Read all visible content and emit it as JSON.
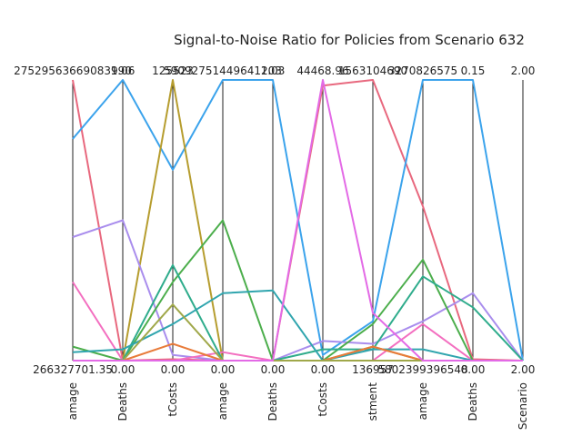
{
  "chart_data": {
    "type": "line",
    "subtype": "parallel-coordinates",
    "title": "Signal-to-Noise Ratio for Policies from Scenario 632",
    "axes": [
      {
        "label": "Damage",
        "label_visible": "amage",
        "top": "27529563669083990",
        "bottom": "266327701.35"
      },
      {
        "label": "Deaths",
        "label_visible": "Deaths",
        "top": "1.06",
        "bottom": "0.00"
      },
      {
        "label": "InvestmentCosts",
        "label_visible": "tCosts",
        "top": "125523",
        "bottom": "0.00"
      },
      {
        "label": "Damage",
        "label_visible": "amage",
        "top": "59092751449641203",
        "bottom": "0.00"
      },
      {
        "label": "Deaths",
        "label_visible": "Deaths",
        "top": "1.03",
        "bottom": "0.00"
      },
      {
        "label": "EvacuationCosts",
        "label_visible": "tCosts",
        "top": "44468.96",
        "bottom": "0.00"
      },
      {
        "label": "Investment",
        "label_visible": "stment",
        "top": "1563104690",
        "bottom": "136957"
      },
      {
        "label": "Damage",
        "label_visible": "amage",
        "top": "3270826575",
        "bottom": "5802399396548"
      },
      {
        "label": "Deaths",
        "label_visible": "Deaths",
        "top": "0.15",
        "bottom": "0.00"
      },
      {
        "label": "Scenario",
        "label_visible": "Scenario",
        "top": "2.00",
        "bottom": "2.00"
      }
    ],
    "ylim": [
      0,
      1
    ],
    "grid": false,
    "legend": "none",
    "series": [
      {
        "color": "#e8687e",
        "values": [
          1.0,
          0.0,
          0.005,
          0.0,
          0.0,
          0.98,
          1.0,
          0.55,
          0.005,
          0.0
        ]
      },
      {
        "color": "#3ba3ec",
        "values": [
          0.79,
          1.0,
          0.68,
          1.0,
          1.0,
          0.02,
          0.14,
          1.0,
          1.0,
          0.0
        ]
      },
      {
        "color": "#b69d2f",
        "values": [
          0.0,
          0.0,
          1.0,
          0.0,
          0.0,
          0.0,
          0.05,
          0.0,
          0.0,
          0.0
        ]
      },
      {
        "color": "#a98ded",
        "values": [
          0.44,
          0.5,
          0.02,
          0.0,
          0.0,
          0.07,
          0.06,
          0.14,
          0.24,
          0.0
        ]
      },
      {
        "color": "#f36fc0",
        "values": [
          0.28,
          0.0,
          0.0,
          0.03,
          0.0,
          0.0,
          0.0,
          0.13,
          0.0,
          0.0
        ]
      },
      {
        "color": "#4cae4c",
        "values": [
          0.05,
          0.0,
          0.28,
          0.5,
          0.0,
          0.0,
          0.13,
          0.36,
          0.0,
          0.0
        ]
      },
      {
        "color": "#2fac8c",
        "values": [
          0.0,
          0.0,
          0.34,
          0.0,
          0.0,
          0.04,
          0.04,
          0.3,
          0.19,
          0.0
        ]
      },
      {
        "color": "#30a5ae",
        "values": [
          0.03,
          0.04,
          0.13,
          0.24,
          0.25,
          0.0,
          0.04,
          0.04,
          0.0,
          0.0
        ]
      },
      {
        "color": "#e87b3a",
        "values": [
          0.0,
          0.0,
          0.06,
          0.0,
          0.0,
          0.0,
          0.05,
          0.0,
          0.0,
          0.0
        ]
      },
      {
        "color": "#a0a84a",
        "values": [
          0.0,
          0.0,
          0.2,
          0.0,
          0.0,
          0.0,
          0.0,
          0.0,
          0.0,
          0.0
        ]
      },
      {
        "color": "#e36ae6",
        "values": [
          0.0,
          0.0,
          0.0,
          0.0,
          0.0,
          1.0,
          0.17,
          0.0,
          0.0,
          0.0
        ]
      }
    ]
  }
}
